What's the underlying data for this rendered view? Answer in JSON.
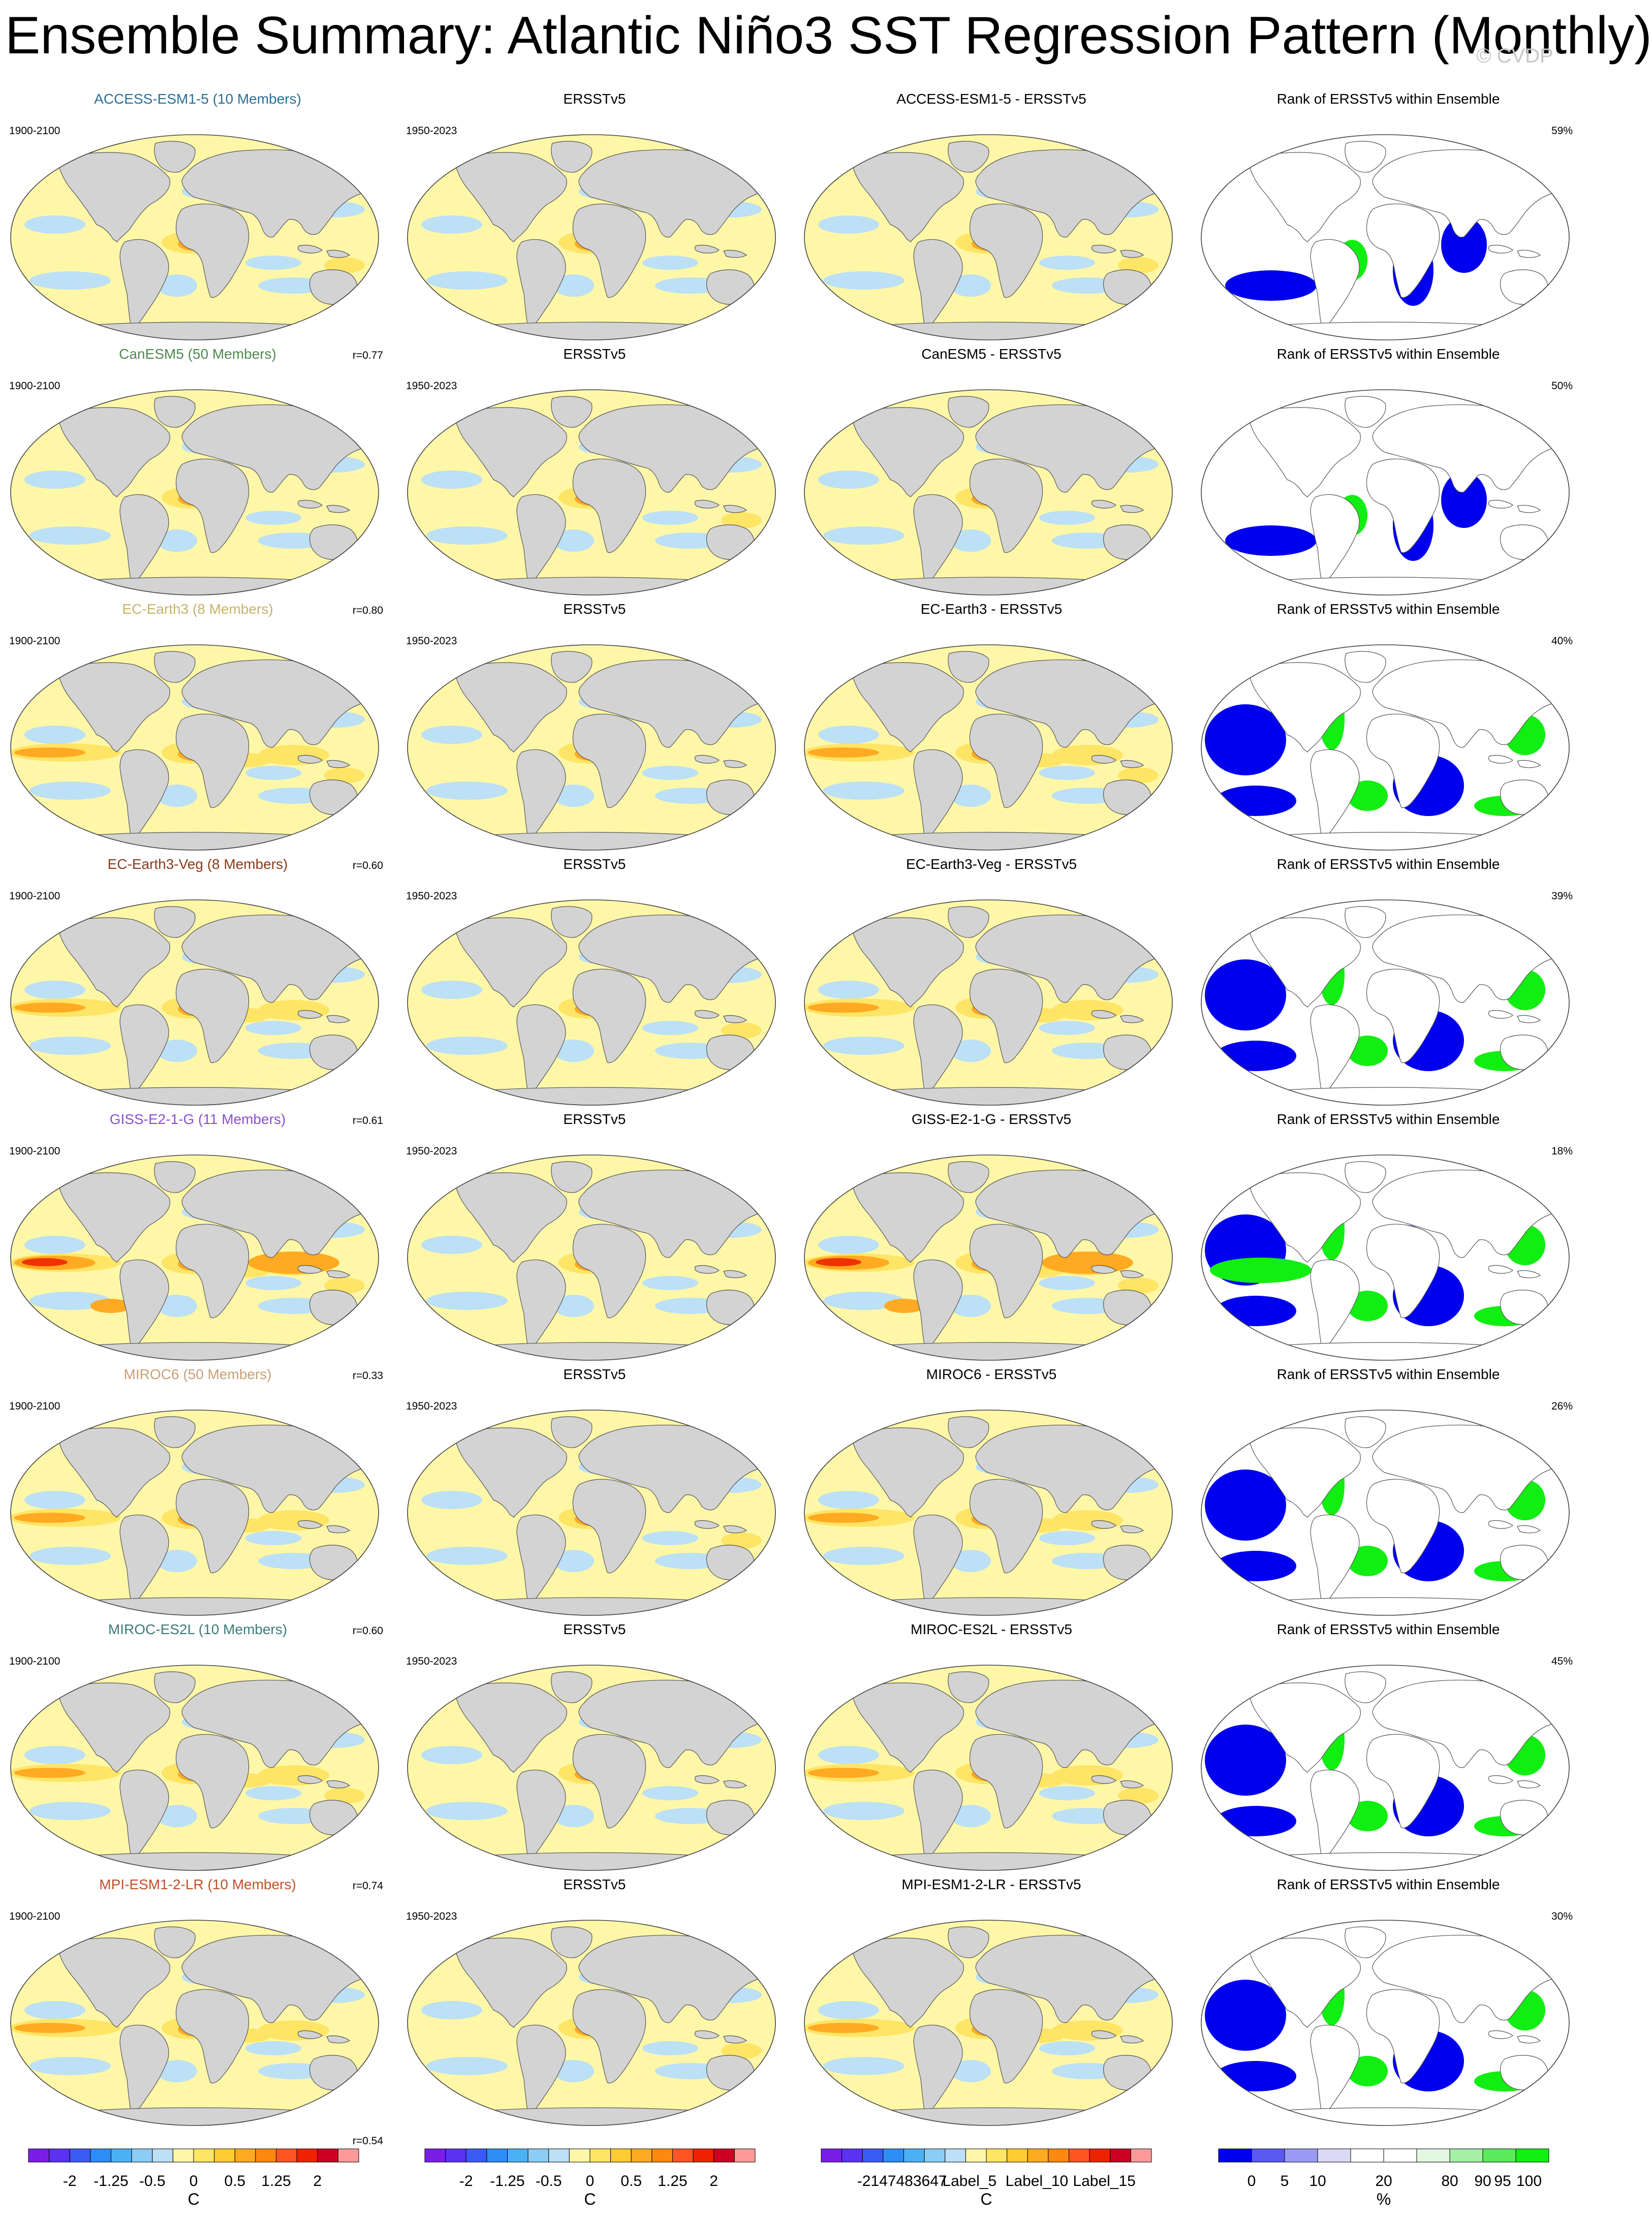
{
  "title": "Ensemble Summary: Atlantic Niño3 SST Regression Pattern (Monthly)",
  "watermark": "© CVDP",
  "column_titles": {
    "observation": "ERSSTv5",
    "rank": "Rank of ERSSTv5 within Ensemble"
  },
  "colors": {
    "land": "#d3d3d3",
    "ocean_neutral": "#fff7a8",
    "rank_blue": "#0000ee",
    "rank_green": "#11ee11"
  },
  "models": [
    {
      "name": "ACCESS-ESM1-5",
      "members": "ACCESS-ESM1-5 (10 Members)",
      "title_color": "#2a6f97",
      "model_period": "1900-2100",
      "obs_period": "1950-2023",
      "difference_title": "ACCESS-ESM1-5 - ERSSTv5",
      "pattern_correlation": "r=0.77",
      "rank_percent": "59%",
      "pattern": "weak"
    },
    {
      "name": "CanESM5",
      "members": "CanESM5 (50 Members)",
      "title_color": "#4f8a4f",
      "model_period": "1900-2100",
      "obs_period": "1950-2023",
      "difference_title": "CanESM5 - ERSSTv5",
      "pattern_correlation": "r=0.80",
      "rank_percent": "50%",
      "pattern": "weak"
    },
    {
      "name": "EC-Earth3",
      "members": "EC-Earth3 (8 Members)",
      "title_color": "#c8b36a",
      "model_period": "1900-2100",
      "obs_period": "1950-2023",
      "difference_title": "EC-Earth3 - ERSSTv5",
      "pattern_correlation": "r=0.60",
      "rank_percent": "40%",
      "pattern": "strong"
    },
    {
      "name": "EC-Earth3-Veg",
      "members": "EC-Earth3-Veg (8 Members)",
      "title_color": "#8b3a1a",
      "model_period": "1900-2100",
      "obs_period": "1950-2023",
      "difference_title": "EC-Earth3-Veg - ERSSTv5",
      "pattern_correlation": "r=0.61",
      "rank_percent": "39%",
      "pattern": "strong"
    },
    {
      "name": "GISS-E2-1-G",
      "members": "GISS-E2-1-G (11 Members)",
      "title_color": "#8a4fd6",
      "model_period": "1900-2100",
      "obs_period": "1950-2023",
      "difference_title": "GISS-E2-1-G - ERSSTv5",
      "pattern_correlation": "r=0.33",
      "rank_percent": "18%",
      "pattern": "pacific"
    },
    {
      "name": "MIROC6",
      "members": "MIROC6 (50 Members)",
      "title_color": "#c8a078",
      "model_period": "1900-2100",
      "obs_period": "1950-2023",
      "difference_title": "MIROC6 - ERSSTv5",
      "pattern_correlation": "r=0.60",
      "rank_percent": "26%",
      "pattern": "strong"
    },
    {
      "name": "MIROC-ES2L",
      "members": "MIROC-ES2L (10 Members)",
      "title_color": "#3d7a7a",
      "model_period": "1900-2100",
      "obs_period": "1950-2023",
      "difference_title": "MIROC-ES2L - ERSSTv5",
      "pattern_correlation": "r=0.74",
      "rank_percent": "45%",
      "pattern": "strong"
    },
    {
      "name": "MPI-ESM1-2-LR",
      "members": "MPI-ESM1-2-LR (10 Members)",
      "title_color": "#c0502a",
      "model_period": "1900-2100",
      "obs_period": "1950-2023",
      "difference_title": "MPI-ESM1-2-LR - ERSSTv5",
      "pattern_correlation": "r=0.54",
      "rank_percent": "30%",
      "pattern": "strong"
    }
  ],
  "colorbars": [
    {
      "unit": "C",
      "colors": [
        "#7a1ee6",
        "#5a32f0",
        "#3a5af5",
        "#2e8cf5",
        "#4cb0f5",
        "#8ccdf5",
        "#bce0f5",
        "#fff7a8",
        "#ffe566",
        "#ffcc33",
        "#ffaa22",
        "#ff8811",
        "#ff5522",
        "#ee2200",
        "#cc0022",
        "#ff9999"
      ],
      "labels": [
        "-2",
        "-1.25",
        "-0.5",
        "0",
        "0.5",
        "1.25",
        "2"
      ]
    },
    {
      "unit": "C",
      "colors": [
        "#7a1ee6",
        "#5a32f0",
        "#3a5af5",
        "#2e8cf5",
        "#4cb0f5",
        "#8ccdf5",
        "#bce0f5",
        "#fff7a8",
        "#ffe566",
        "#ffcc33",
        "#ffaa22",
        "#ff8811",
        "#ff5522",
        "#ee2200",
        "#cc0022",
        "#ff9999"
      ],
      "labels": [
        "-2",
        "-1.25",
        "-0.5",
        "0",
        "0.5",
        "1.25",
        "2"
      ]
    },
    {
      "unit": "C",
      "colors": [
        "#7a1ee6",
        "#5a32f0",
        "#3a5af5",
        "#2e8cf5",
        "#4cb0f5",
        "#8ccdf5",
        "#bce0f5",
        "#fff7a8",
        "#ffe566",
        "#ffcc33",
        "#ffaa22",
        "#ff8811",
        "#ff5522",
        "#ee2200",
        "#cc0022",
        "#ff9999"
      ],
      "labels": [
        "-2147483647",
        "Label_5",
        "Label_10",
        "Label_15"
      ]
    },
    {
      "unit": "%",
      "colors": [
        "#0000ee",
        "#5a5af0",
        "#9a9af5",
        "#dadaf7",
        "#ffffff",
        "#ffffff",
        "#e3f7e3",
        "#a4f0a4",
        "#5aea5a",
        "#11ee11"
      ],
      "labels": [
        "0",
        "5",
        "10",
        "20",
        "80",
        "90",
        "95",
        "100"
      ]
    }
  ]
}
